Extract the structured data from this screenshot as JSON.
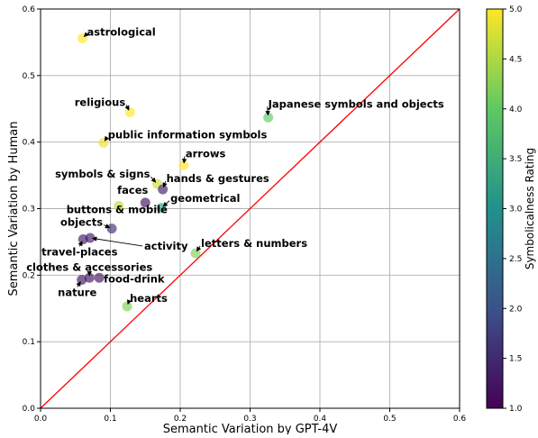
{
  "chart_data": {
    "type": "scatter",
    "xlabel": "Semantic Variation by GPT-4V",
    "ylabel": "Semantic Variation by Human",
    "xlim": [
      0.0,
      0.6
    ],
    "ylim": [
      0.0,
      0.6
    ],
    "x_ticks": [
      "0.0",
      "0.1",
      "0.2",
      "0.3",
      "0.4",
      "0.5",
      "0.6"
    ],
    "y_ticks": [
      "0.0",
      "0.1",
      "0.2",
      "0.3",
      "0.4",
      "0.5",
      "0.6"
    ],
    "grid": true,
    "reference_line": {
      "from": [
        0.0,
        0.0
      ],
      "to": [
        0.6,
        0.6
      ],
      "color": "#ff0000"
    },
    "colormap": "viridis",
    "colorbar": {
      "label": "Symbolicalness Rating",
      "range": [
        1.0,
        5.0
      ],
      "ticks": [
        "1.0",
        "1.5",
        "2.0",
        "2.5",
        "3.0",
        "3.5",
        "4.0",
        "4.5",
        "5.0"
      ]
    },
    "points": [
      {
        "label": "astrological",
        "x": 0.06,
        "y": 0.556,
        "rating": 5.0
      },
      {
        "label": "religious",
        "x": 0.128,
        "y": 0.445,
        "rating": 5.0
      },
      {
        "label": "Japanese symbols and objects",
        "x": 0.326,
        "y": 0.437,
        "rating": 4.0
      },
      {
        "label": "public information symbols",
        "x": 0.09,
        "y": 0.399,
        "rating": 4.9
      },
      {
        "label": "arrows",
        "x": 0.205,
        "y": 0.365,
        "rating": 5.0
      },
      {
        "label": "symbols & signs",
        "x": 0.167,
        "y": 0.337,
        "rating": 4.7
      },
      {
        "label": "hands & gestures",
        "x": 0.175,
        "y": 0.329,
        "rating": 1.3
      },
      {
        "label": "faces",
        "x": 0.15,
        "y": 0.309,
        "rating": 1.2
      },
      {
        "label": "geometrical",
        "x": 0.173,
        "y": 0.301,
        "rating": 3.3
      },
      {
        "label": "buttons & mobile",
        "x": 0.112,
        "y": 0.304,
        "rating": 4.6
      },
      {
        "label": "objects",
        "x": 0.102,
        "y": 0.27,
        "rating": 1.5
      },
      {
        "label": "activity",
        "x": 0.071,
        "y": 0.256,
        "rating": 1.3
      },
      {
        "label": "travel-places",
        "x": 0.061,
        "y": 0.254,
        "rating": 1.3
      },
      {
        "label": "letters & numbers",
        "x": 0.222,
        "y": 0.233,
        "rating": 4.2
      },
      {
        "label": "clothes & accessories",
        "x": 0.07,
        "y": 0.196,
        "rating": 1.2
      },
      {
        "label": "food-drink",
        "x": 0.084,
        "y": 0.196,
        "rating": 1.2
      },
      {
        "label": "nature",
        "x": 0.059,
        "y": 0.193,
        "rating": 1.2
      },
      {
        "label": "hearts",
        "x": 0.124,
        "y": 0.153,
        "rating": 4.2
      }
    ]
  }
}
